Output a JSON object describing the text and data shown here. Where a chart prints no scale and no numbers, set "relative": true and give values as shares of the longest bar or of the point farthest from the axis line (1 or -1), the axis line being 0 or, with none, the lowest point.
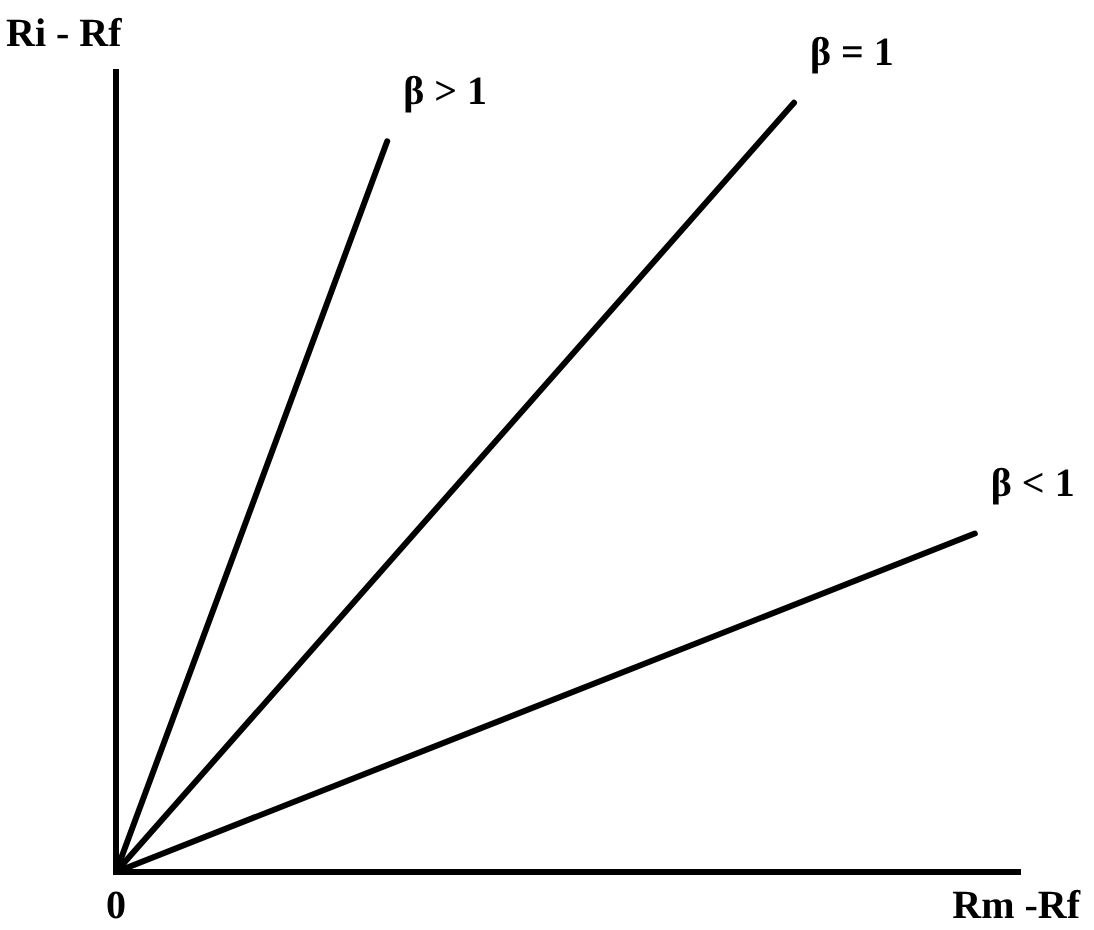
{
  "chart_data": {
    "type": "line",
    "relative": true,
    "xlabel": "Rm -Rf",
    "ylabel": "Ri - Rf",
    "annotations": [
      "0"
    ],
    "categories": [
      null,
      null,
      null,
      null,
      null,
      null,
      null,
      null,
      null,
      null,
      null,
      null,
      null,
      null,
      null,
      null,
      null,
      null,
      null,
      null,
      null
    ],
    "marker": "none",
    "line_style": "solid",
    "grid": false,
    "legend": false,
    "series": [
      {
        "name": "β > 1",
        "color": "#000000",
        "values": [
          0,
          null,
          null,
          null,
          null,
          null,
          0.95,
          null,
          null,
          null,
          null,
          null,
          null,
          null,
          null,
          null,
          null,
          null,
          null,
          null,
          null
        ]
      },
      {
        "name": "β = 1",
        "color": "#000000",
        "values": [
          0,
          null,
          null,
          null,
          null,
          null,
          null,
          null,
          null,
          null,
          null,
          null,
          null,
          null,
          null,
          1,
          null,
          null,
          null,
          null,
          null
        ]
      },
      {
        "name": "β < 1",
        "color": "#000000",
        "values": [
          0,
          null,
          null,
          null,
          null,
          null,
          null,
          null,
          null,
          null,
          null,
          null,
          null,
          null,
          null,
          null,
          null,
          null,
          null,
          0.44,
          null
        ]
      }
    ]
  }
}
